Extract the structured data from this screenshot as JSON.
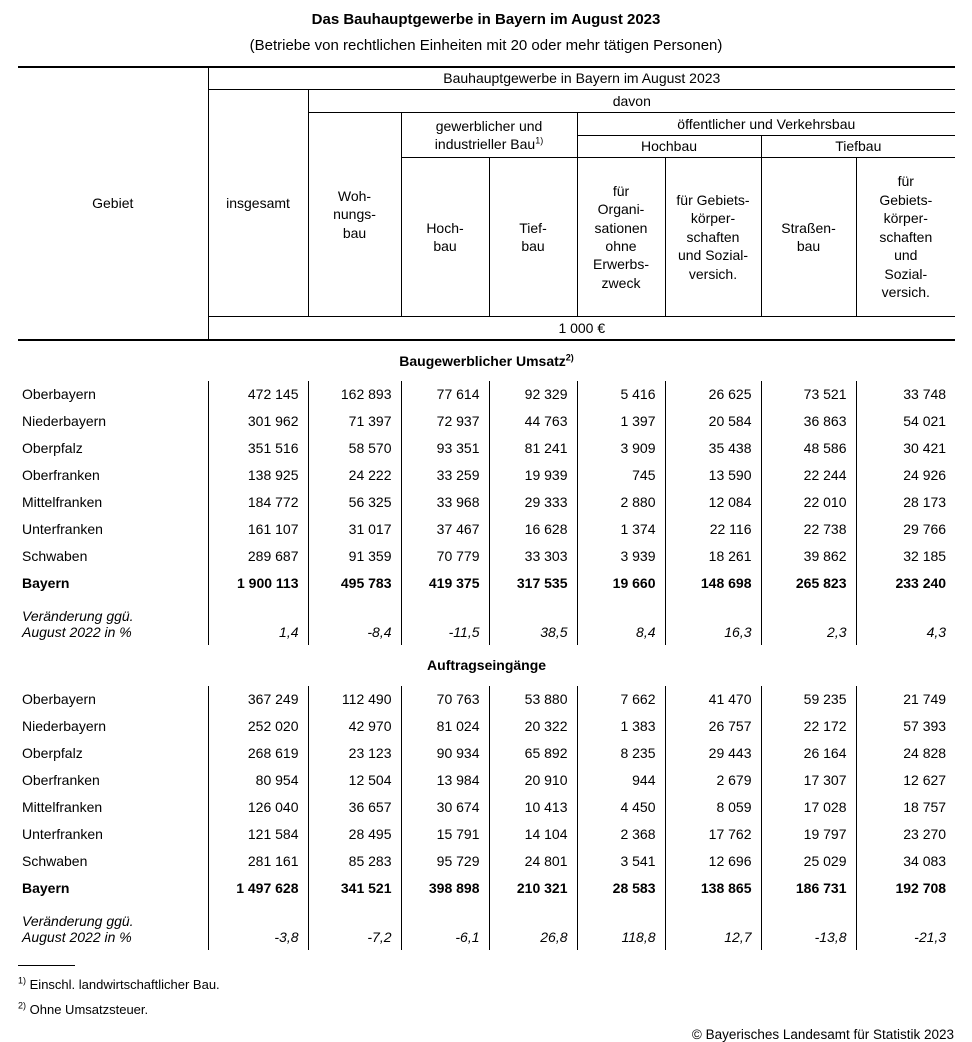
{
  "page": {
    "title": "Das Bauhauptgewerbe in Bayern im August 2023",
    "subtitle": "(Betriebe von rechtlichen Einheiten mit 20 oder mehr tätigen Personen)"
  },
  "header": {
    "span_title": "Bauhauptgewerbe in Bayern im August 2023",
    "davon": "davon",
    "gebiet": "Gebiet",
    "insgesamt": "insgesamt",
    "wohnungsbau": "Woh-\nnungs-\nbau",
    "gewerblich_group": "gewerblicher und\nindustrieller Bau",
    "gewerblich_sup": "1)",
    "oeffentlich_group": "öffentlicher und Verkehrsbau",
    "hochbau_group": "Hochbau",
    "tiefbau_group": "Tiefbau",
    "col_hochbau": "Hoch-\nbau",
    "col_tiefbau": "Tief-\nbau",
    "col_organisationen": "für\nOrgani-\nsationen\nohne\nErwerbs-\nzweck",
    "col_gebietskoerperschaften_hochbau": "für Gebiets-\nkörper-\nschaften\nund Sozial-\nversich.",
    "col_strassenbau": "Straßen-\nbau",
    "col_gebietskoerperschaften_tiefbau": "für\nGebiets-\nkörper-\nschaften\nund\nSozial-\nversich.",
    "unit": "1 000 €"
  },
  "sections": [
    {
      "title": "Baugewerblicher Umsatz",
      "title_sup": "2)",
      "rows": [
        {
          "label": "Oberbayern",
          "style": "normal",
          "values": [
            "472 145",
            "162 893",
            "77 614",
            "92 329",
            "5 416",
            "26 625",
            "73 521",
            "33 748"
          ]
        },
        {
          "label": "Niederbayern",
          "style": "normal",
          "values": [
            "301 962",
            "71 397",
            "72 937",
            "44 763",
            "1 397",
            "20 584",
            "36 863",
            "54 021"
          ]
        },
        {
          "label": "Oberpfalz",
          "style": "normal",
          "values": [
            "351 516",
            "58 570",
            "93 351",
            "81 241",
            "3 909",
            "35 438",
            "48 586",
            "30 421"
          ]
        },
        {
          "label": "Oberfranken",
          "style": "normal",
          "values": [
            "138 925",
            "24 222",
            "33 259",
            "19 939",
            "745",
            "13 590",
            "22 244",
            "24 926"
          ]
        },
        {
          "label": "Mittelfranken",
          "style": "normal",
          "values": [
            "184 772",
            "56 325",
            "33 968",
            "29 333",
            "2 880",
            "12 084",
            "22 010",
            "28 173"
          ]
        },
        {
          "label": "Unterfranken",
          "style": "normal",
          "values": [
            "161 107",
            "31 017",
            "37 467",
            "16 628",
            "1 374",
            "22 116",
            "22 738",
            "29 766"
          ]
        },
        {
          "label": "Schwaben",
          "style": "normal",
          "values": [
            "289 687",
            "91 359",
            "70 779",
            "33 303",
            "3 939",
            "18 261",
            "39 862",
            "32 185"
          ]
        },
        {
          "label": "Bayern",
          "style": "bold",
          "values": [
            "1 900 113",
            "495 783",
            "419 375",
            "317 535",
            "19 660",
            "148 698",
            "265 823",
            "233 240"
          ]
        },
        {
          "label": "Veränderung ggü.\nAugust 2022 in %",
          "style": "change",
          "values": [
            "1,4",
            "-8,4",
            "-11,5",
            "38,5",
            "8,4",
            "16,3",
            "2,3",
            "4,3"
          ]
        }
      ]
    },
    {
      "title": "Auftragseingänge",
      "title_sup": "",
      "rows": [
        {
          "label": "Oberbayern",
          "style": "normal",
          "values": [
            "367 249",
            "112 490",
            "70 763",
            "53 880",
            "7 662",
            "41 470",
            "59 235",
            "21 749"
          ]
        },
        {
          "label": "Niederbayern",
          "style": "normal",
          "values": [
            "252 020",
            "42 970",
            "81 024",
            "20 322",
            "1 383",
            "26 757",
            "22 172",
            "57 393"
          ]
        },
        {
          "label": "Oberpfalz",
          "style": "normal",
          "values": [
            "268 619",
            "23 123",
            "90 934",
            "65 892",
            "8 235",
            "29 443",
            "26 164",
            "24 828"
          ]
        },
        {
          "label": "Oberfranken",
          "style": "normal",
          "values": [
            "80 954",
            "12 504",
            "13 984",
            "20 910",
            "944",
            "2 679",
            "17 307",
            "12 627"
          ]
        },
        {
          "label": "Mittelfranken",
          "style": "normal",
          "values": [
            "126 040",
            "36 657",
            "30 674",
            "10 413",
            "4 450",
            "8 059",
            "17 028",
            "18 757"
          ]
        },
        {
          "label": "Unterfranken",
          "style": "normal",
          "values": [
            "121 584",
            "28 495",
            "15 791",
            "14 104",
            "2 368",
            "17 762",
            "19 797",
            "23 270"
          ]
        },
        {
          "label": "Schwaben",
          "style": "normal",
          "values": [
            "281 161",
            "85 283",
            "95 729",
            "24 801",
            "3 541",
            "12 696",
            "25 029",
            "34 083"
          ]
        },
        {
          "label": "Bayern",
          "style": "bold",
          "values": [
            "1 497 628",
            "341 521",
            "398 898",
            "210 321",
            "28 583",
            "138 865",
            "186 731",
            "192 708"
          ]
        },
        {
          "label": "Veränderung ggü.\nAugust 2022 in %",
          "style": "change",
          "values": [
            "-3,8",
            "-7,2",
            "-6,1",
            "26,8",
            "118,8",
            "12,7",
            "-13,8",
            "-21,3"
          ]
        }
      ]
    }
  ],
  "footnotes": [
    {
      "marker": "1)",
      "text": "Einschl. landwirtschaftlicher Bau."
    },
    {
      "marker": "2)",
      "text": "Ohne Umsatzsteuer."
    }
  ],
  "copyright": "© Bayerisches Landesamt für Statistik 2023"
}
